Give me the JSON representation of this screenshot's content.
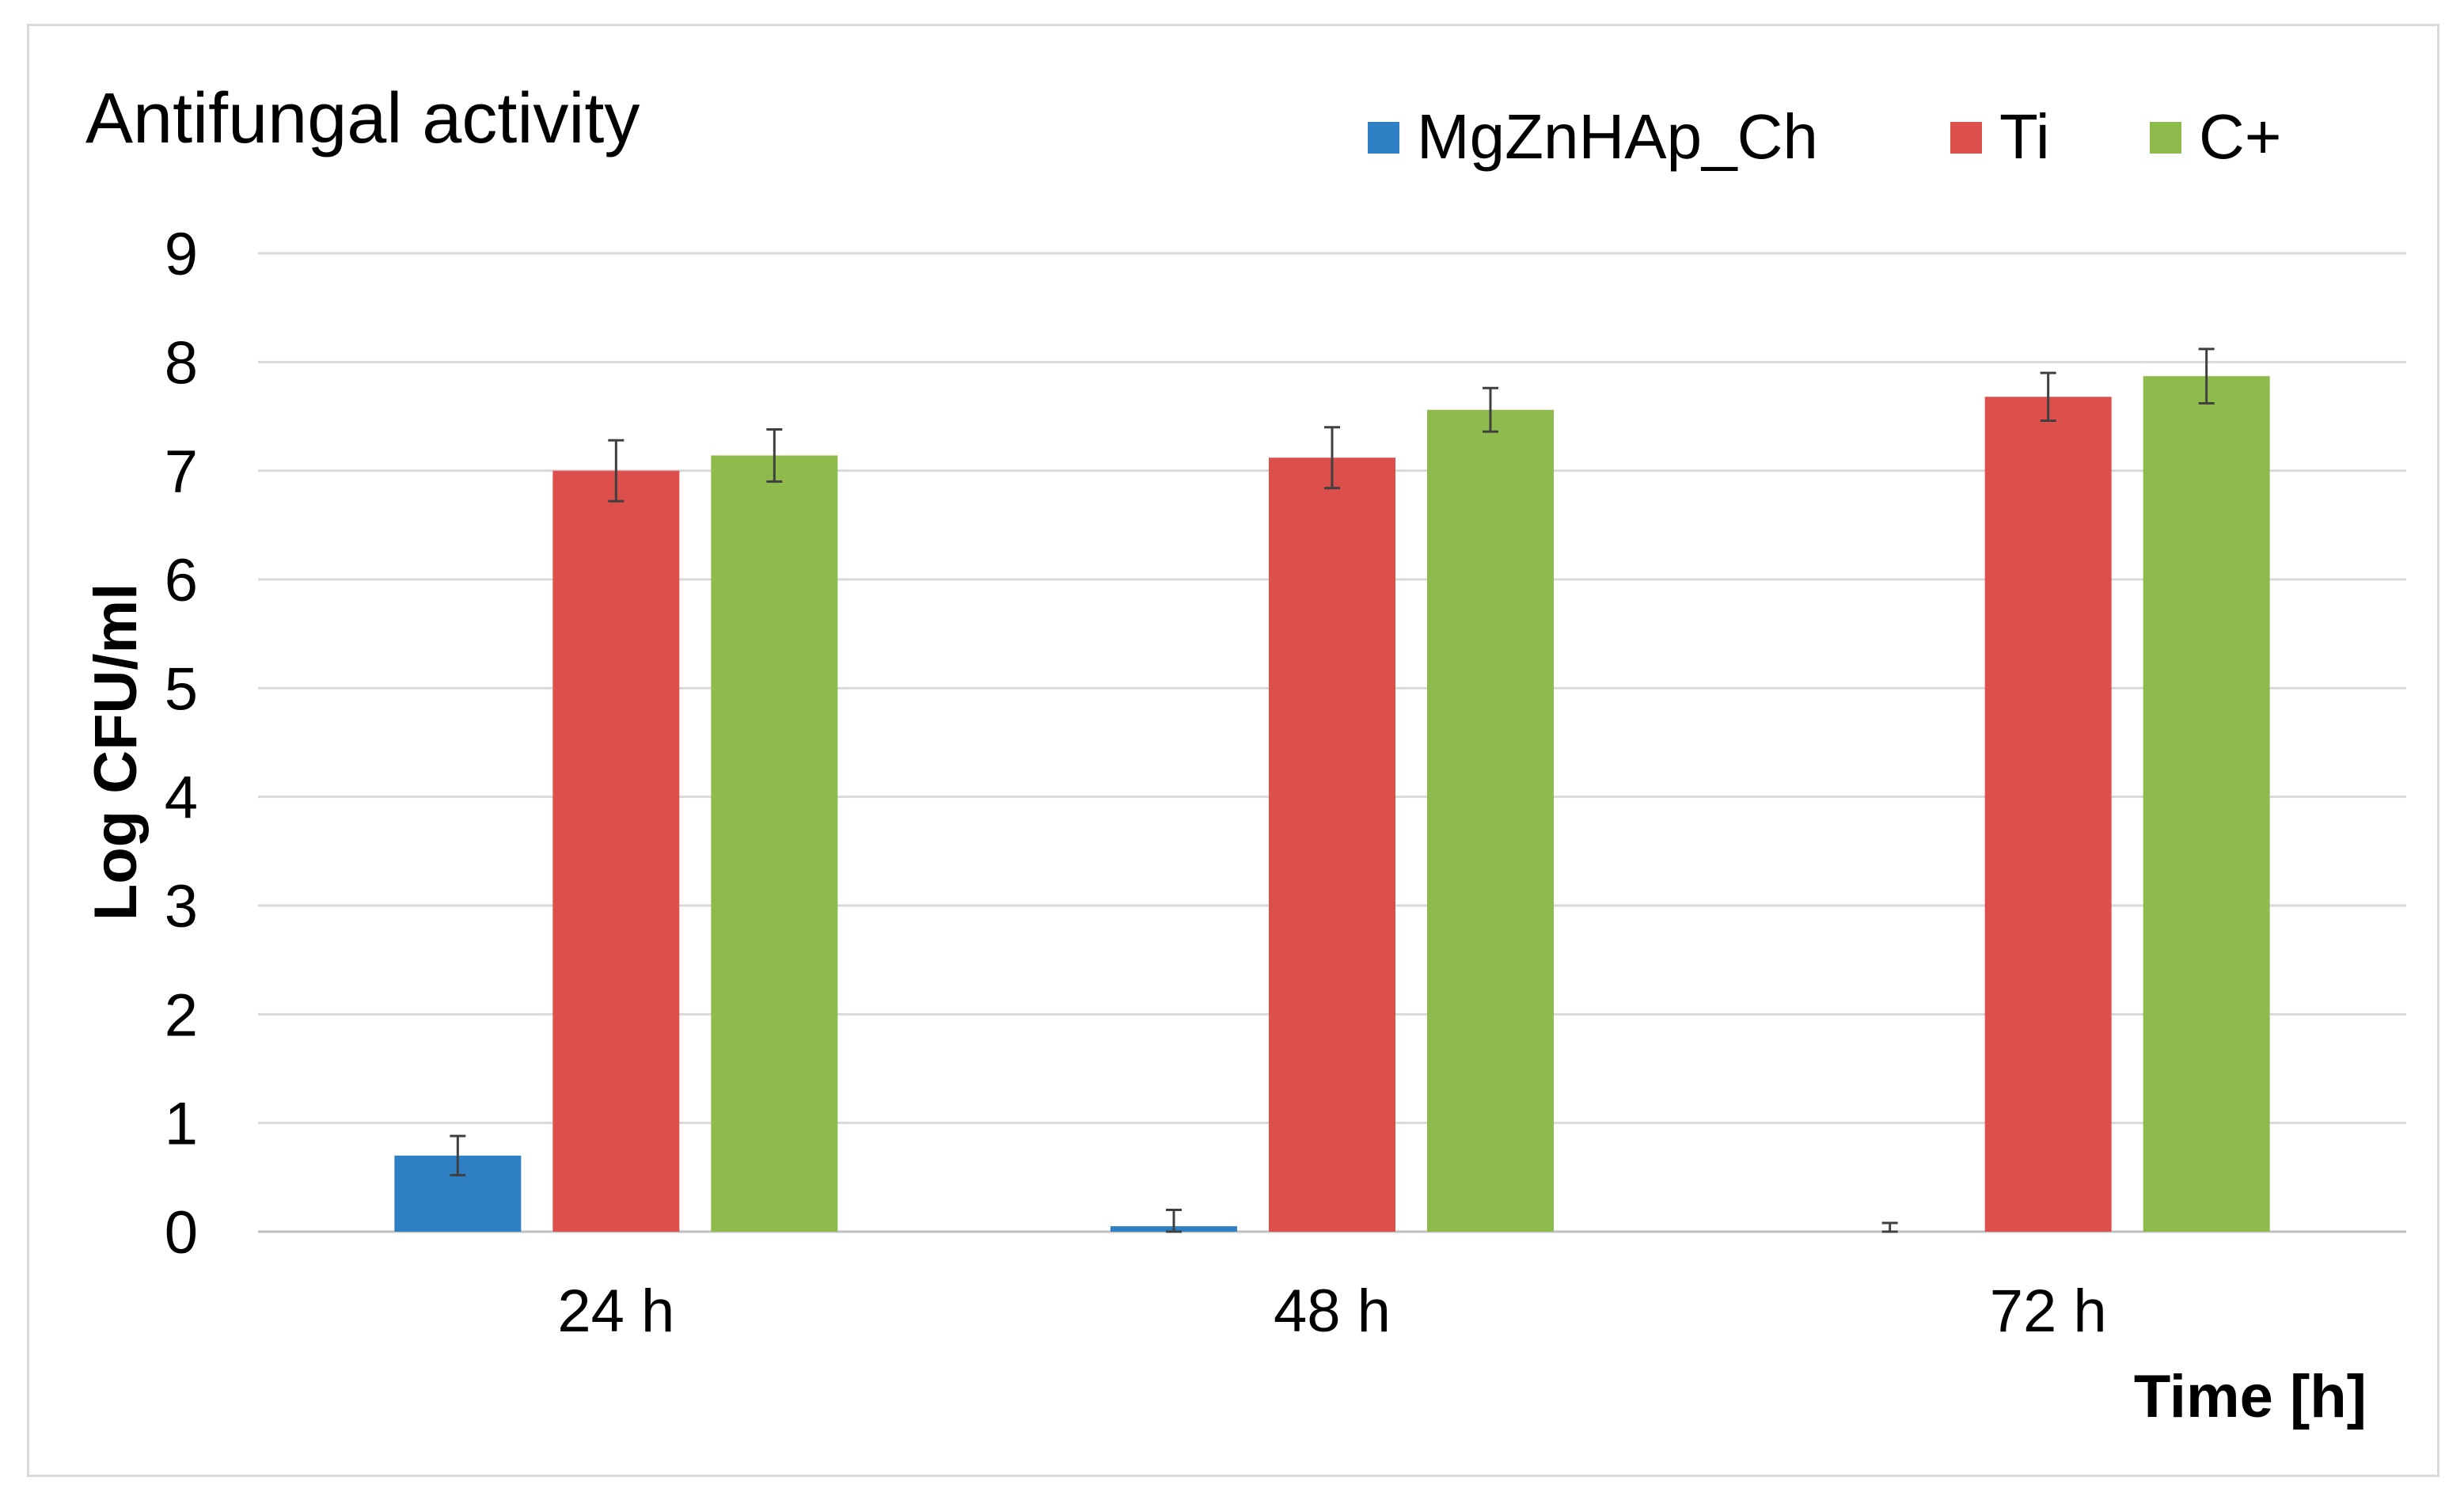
{
  "chart_data": {
    "type": "bar",
    "title": "Antifungal activity",
    "xlabel": "Time [h]",
    "ylabel": "Log CFU/ml",
    "ylim": [
      0,
      9
    ],
    "yticks": [
      0,
      1,
      2,
      3,
      4,
      5,
      6,
      7,
      8,
      9
    ],
    "categories": [
      "24 h",
      "48 h",
      "72 h"
    ],
    "grid": true,
    "legend_position": "top-right",
    "series": [
      {
        "name": "MgZnHAp_Ch",
        "color": "#2e7fc3",
        "values": [
          0.7,
          0.05,
          0.0
        ],
        "errors": [
          0.18,
          0.15,
          0.08
        ]
      },
      {
        "name": "Ti",
        "color": "#dc4f4b",
        "values": [
          7.0,
          7.12,
          7.68
        ],
        "errors": [
          0.28,
          0.28,
          0.22
        ]
      },
      {
        "name": "C+",
        "color": "#8fbb4d",
        "values": [
          7.14,
          7.56,
          7.87
        ],
        "errors": [
          0.24,
          0.2,
          0.25
        ]
      }
    ]
  }
}
